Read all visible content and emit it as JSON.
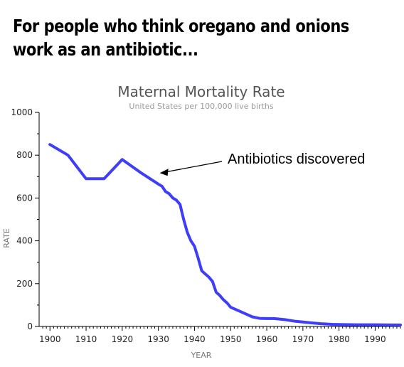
{
  "caption": {
    "line1": "For people who think oregano and onions",
    "line2": "work as an antibiotic..."
  },
  "chart_data": {
    "type": "line",
    "title": "Maternal Mortality Rate",
    "subtitle": "United States per 100,000 live births",
    "xlabel": "YEAR",
    "ylabel": "RATE",
    "xlim": [
      1897,
      1997
    ],
    "ylim": [
      0,
      1000
    ],
    "xticks": [
      1900,
      1910,
      1920,
      1930,
      1940,
      1950,
      1960,
      1970,
      1980,
      1990
    ],
    "yticks": [
      0,
      200,
      400,
      600,
      800,
      1000
    ],
    "grid": false,
    "line_color": "#3d3dfa",
    "x": [
      1900,
      1905,
      1910,
      1915,
      1920,
      1925,
      1930,
      1931,
      1932,
      1933,
      1934,
      1935,
      1936,
      1937,
      1938,
      1939,
      1940,
      1941,
      1942,
      1943,
      1944,
      1945,
      1946,
      1947,
      1948,
      1949,
      1950,
      1952,
      1954,
      1956,
      1958,
      1960,
      1962,
      1965,
      1968,
      1970,
      1973,
      1975,
      1978,
      1980,
      1985,
      1990,
      1995,
      1997
    ],
    "y": [
      850,
      800,
      690,
      690,
      780,
      720,
      665,
      655,
      630,
      620,
      600,
      590,
      570,
      500,
      440,
      400,
      375,
      320,
      260,
      245,
      230,
      210,
      160,
      145,
      125,
      110,
      90,
      75,
      60,
      45,
      38,
      37,
      37,
      32,
      24,
      21,
      16,
      13,
      10,
      9,
      8,
      8,
      7,
      7
    ],
    "annotations": [
      {
        "text": "Antibiotics discovered",
        "x": 1930,
        "y": 730
      }
    ]
  }
}
